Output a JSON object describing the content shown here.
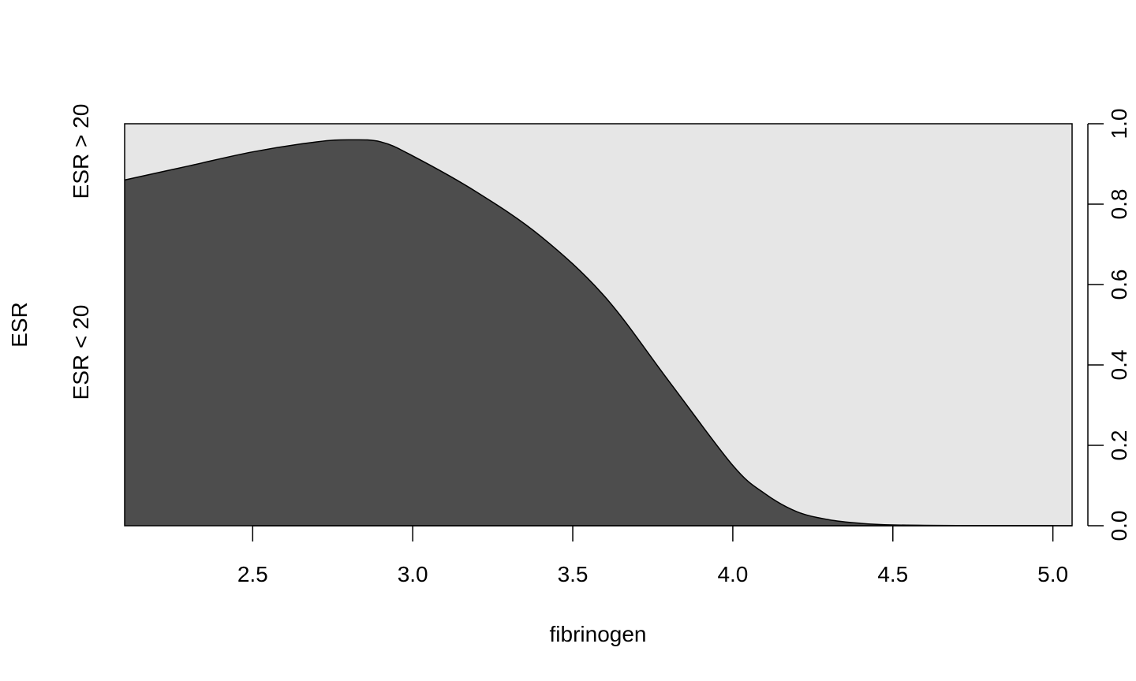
{
  "chart_data": {
    "type": "area",
    "subtype": "conditional-density",
    "xlabel": "fibrinogen",
    "ylabel": "ESR",
    "xlim": [
      2.1,
      5.06
    ],
    "ylim": [
      0,
      1
    ],
    "x_ticks": [
      2.5,
      3.0,
      3.5,
      4.0,
      4.5,
      5.0
    ],
    "x_tick_labels": [
      "2.5",
      "3.0",
      "3.5",
      "4.0",
      "4.5",
      "5.0"
    ],
    "y_ticks": [
      0,
      0.2,
      0.4,
      0.6,
      0.8,
      1.0
    ],
    "y_tick_labels": [
      "0.0",
      "0.2",
      "0.4",
      "0.6",
      "0.8",
      "1.0"
    ],
    "categories": [
      "ESR < 20",
      "ESR > 20"
    ],
    "colors": {
      "lower": "#4d4d4d",
      "upper": "#e6e6e6"
    },
    "grid": false,
    "series": [
      {
        "name": "ESR < 20",
        "x": [
          2.1,
          2.3,
          2.5,
          2.7,
          2.8,
          2.9,
          3.0,
          3.2,
          3.4,
          3.6,
          3.8,
          4.0,
          4.1,
          4.2,
          4.3,
          4.4,
          4.5,
          4.7,
          5.06
        ],
        "values": [
          0.86,
          0.895,
          0.93,
          0.955,
          0.96,
          0.955,
          0.92,
          0.83,
          0.72,
          0.57,
          0.36,
          0.15,
          0.08,
          0.035,
          0.015,
          0.006,
          0.002,
          0.0005,
          0.0
        ]
      }
    ]
  }
}
